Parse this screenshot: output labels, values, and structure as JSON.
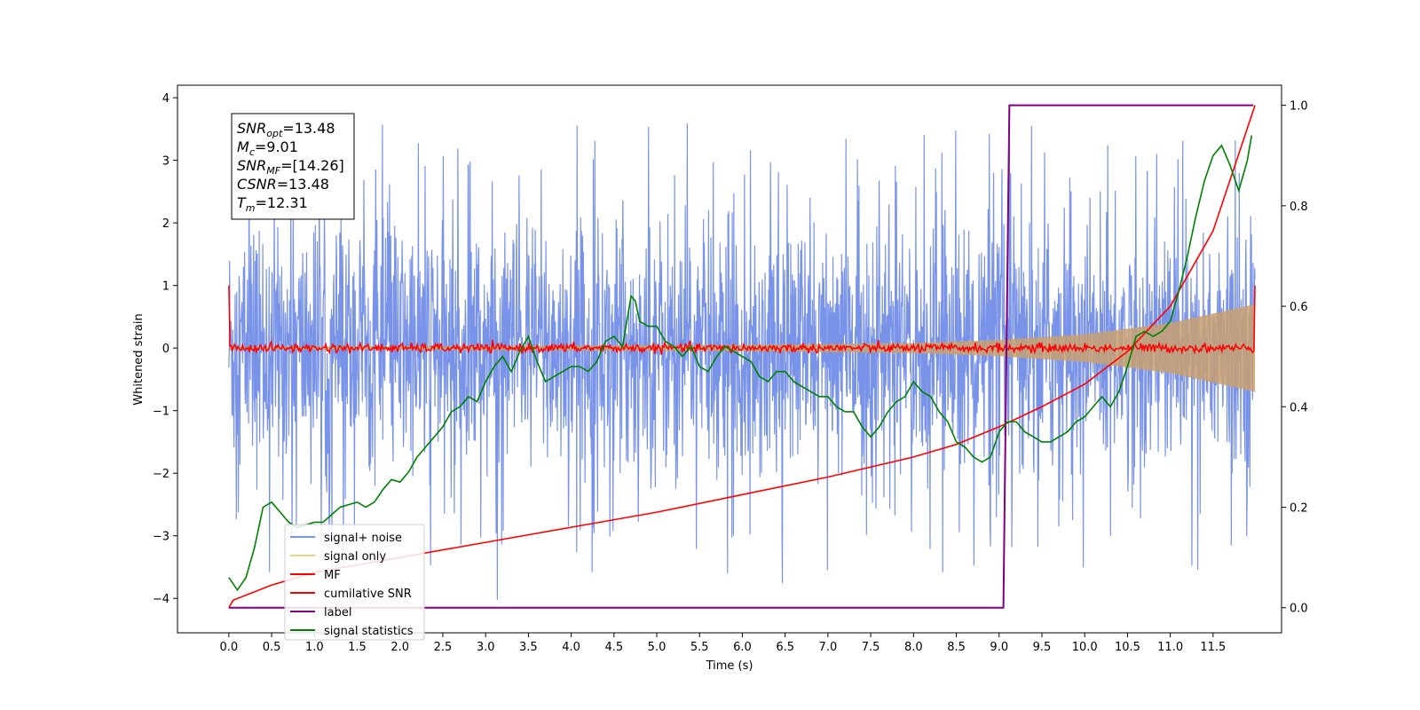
{
  "chart_data": {
    "type": "line",
    "title": "",
    "xlabel": "Time (s)",
    "ylabel": "Whitened strain",
    "xlim": [
      -0.6,
      12.3
    ],
    "ylim": [
      -4.55,
      4.2
    ],
    "y2lim": [
      -0.05,
      1.04
    ],
    "x_ticks": [
      "0.0",
      "0.5",
      "1.0",
      "1.5",
      "2.0",
      "2.5",
      "3.0",
      "3.5",
      "4.0",
      "4.5",
      "5.0",
      "5.5",
      "6.0",
      "6.5",
      "7.0",
      "7.5",
      "8.0",
      "8.5",
      "9.0",
      "9.5",
      "10.0",
      "10.5",
      "11.0",
      "11.5"
    ],
    "y_ticks": [
      "4",
      "3",
      "2",
      "1",
      "0",
      "−1",
      "−2",
      "−3",
      "−4"
    ],
    "y2_ticks": [
      "1.0",
      "0.8",
      "0.6",
      "0.4",
      "0.2",
      "0.0"
    ],
    "grid": false,
    "legend_position": "lower-left",
    "colors": {
      "signal_noise": "#6a87e6",
      "signal_only": "#c8a070",
      "mf": "#ff0000",
      "cumulative_snr": "#ff0000",
      "label": "#800080",
      "signal_statistics": "#008000"
    },
    "series": [
      {
        "name": "signal+ noise",
        "axis": "left",
        "description_values": {
          "envelope_min": -4.1,
          "envelope_max": 3.8,
          "typical_min": -2.6,
          "typical_max": 2.6
        },
        "x_range": [
          0.0,
          11.99
        ]
      },
      {
        "name": "signal only",
        "axis": "left",
        "amplitude_by_time": [
          [
            0.0,
            0.02
          ],
          [
            6.0,
            0.05
          ],
          [
            8.0,
            0.08
          ],
          [
            9.0,
            0.13
          ],
          [
            10.0,
            0.22
          ],
          [
            11.0,
            0.4
          ],
          [
            11.99,
            0.7
          ]
        ]
      },
      {
        "name": "MF",
        "axis": "left",
        "start_value": 1.0,
        "end_value": 1.0,
        "baseline": 0.0,
        "noise_amplitude": 0.08,
        "x_range": [
          0.0,
          11.99
        ]
      },
      {
        "name": "cumilative SNR",
        "axis": "right",
        "x": [
          0.0,
          0.05,
          0.5,
          1.0,
          2.0,
          3.0,
          4.0,
          5.0,
          6.0,
          7.0,
          8.0,
          8.5,
          9.0,
          9.5,
          10.0,
          10.5,
          11.0,
          11.5,
          11.99
        ],
        "values": [
          0.0,
          0.015,
          0.045,
          0.07,
          0.1,
          0.13,
          0.16,
          0.19,
          0.225,
          0.26,
          0.3,
          0.325,
          0.36,
          0.4,
          0.445,
          0.51,
          0.6,
          0.75,
          1.0
        ]
      },
      {
        "name": "label",
        "axis": "right",
        "x": [
          0.0,
          9.05,
          9.12,
          11.97
        ],
        "values": [
          0.0,
          0.0,
          1.0,
          1.0
        ]
      },
      {
        "name": "signal statistics",
        "axis": "right",
        "x": [
          0.0,
          0.1,
          0.2,
          0.3,
          0.4,
          0.5,
          0.6,
          0.7,
          0.8,
          0.9,
          1.0,
          1.1,
          1.2,
          1.3,
          1.4,
          1.5,
          1.6,
          1.7,
          1.8,
          1.9,
          2.0,
          2.1,
          2.2,
          2.3,
          2.4,
          2.5,
          2.6,
          2.7,
          2.8,
          2.9,
          3.0,
          3.1,
          3.2,
          3.3,
          3.4,
          3.5,
          3.6,
          3.7,
          3.8,
          3.9,
          4.0,
          4.1,
          4.2,
          4.3,
          4.4,
          4.5,
          4.6,
          4.7,
          4.75,
          4.8,
          4.9,
          5.0,
          5.1,
          5.2,
          5.3,
          5.4,
          5.5,
          5.6,
          5.7,
          5.8,
          5.9,
          6.0,
          6.1,
          6.2,
          6.3,
          6.4,
          6.5,
          6.6,
          6.7,
          6.8,
          6.9,
          7.0,
          7.1,
          7.2,
          7.3,
          7.4,
          7.5,
          7.6,
          7.7,
          7.8,
          7.9,
          8.0,
          8.1,
          8.2,
          8.3,
          8.4,
          8.5,
          8.6,
          8.7,
          8.8,
          8.9,
          9.0,
          9.1,
          9.2,
          9.3,
          9.4,
          9.5,
          9.6,
          9.7,
          9.8,
          9.9,
          10.0,
          10.1,
          10.2,
          10.3,
          10.4,
          10.5,
          10.6,
          10.7,
          10.8,
          10.9,
          11.0,
          11.1,
          11.2,
          11.3,
          11.4,
          11.5,
          11.6,
          11.7,
          11.8,
          11.9,
          11.95
        ],
        "values": [
          0.06,
          0.035,
          0.06,
          0.12,
          0.2,
          0.21,
          0.19,
          0.17,
          0.16,
          0.165,
          0.17,
          0.17,
          0.185,
          0.2,
          0.205,
          0.21,
          0.2,
          0.21,
          0.235,
          0.255,
          0.25,
          0.27,
          0.3,
          0.32,
          0.34,
          0.36,
          0.39,
          0.4,
          0.42,
          0.41,
          0.45,
          0.48,
          0.5,
          0.47,
          0.51,
          0.54,
          0.49,
          0.45,
          0.46,
          0.47,
          0.48,
          0.48,
          0.47,
          0.49,
          0.53,
          0.54,
          0.52,
          0.62,
          0.61,
          0.57,
          0.56,
          0.56,
          0.53,
          0.52,
          0.5,
          0.52,
          0.48,
          0.47,
          0.5,
          0.52,
          0.51,
          0.5,
          0.49,
          0.46,
          0.45,
          0.47,
          0.47,
          0.45,
          0.44,
          0.43,
          0.42,
          0.42,
          0.4,
          0.39,
          0.39,
          0.36,
          0.34,
          0.36,
          0.39,
          0.41,
          0.42,
          0.45,
          0.43,
          0.42,
          0.39,
          0.37,
          0.33,
          0.32,
          0.3,
          0.29,
          0.3,
          0.35,
          0.37,
          0.37,
          0.35,
          0.34,
          0.33,
          0.33,
          0.34,
          0.35,
          0.37,
          0.38,
          0.4,
          0.42,
          0.4,
          0.43,
          0.48,
          0.54,
          0.55,
          0.54,
          0.55,
          0.57,
          0.63,
          0.7,
          0.78,
          0.85,
          0.9,
          0.92,
          0.88,
          0.83,
          0.89,
          0.94
        ]
      }
    ],
    "annotation_box": {
      "lines": [
        {
          "base": "SNR",
          "sub": "opt",
          "rest": "=13.48"
        },
        {
          "base": "M",
          "sub": "c",
          "rest": "=9.01"
        },
        {
          "base": "SNR",
          "sub": "MF",
          "rest": "=[14.26]"
        },
        {
          "base": "CSNR",
          "sub": "",
          "rest": "=13.48"
        },
        {
          "base": "T",
          "sub": "m",
          "rest": "=12.31"
        }
      ]
    }
  }
}
